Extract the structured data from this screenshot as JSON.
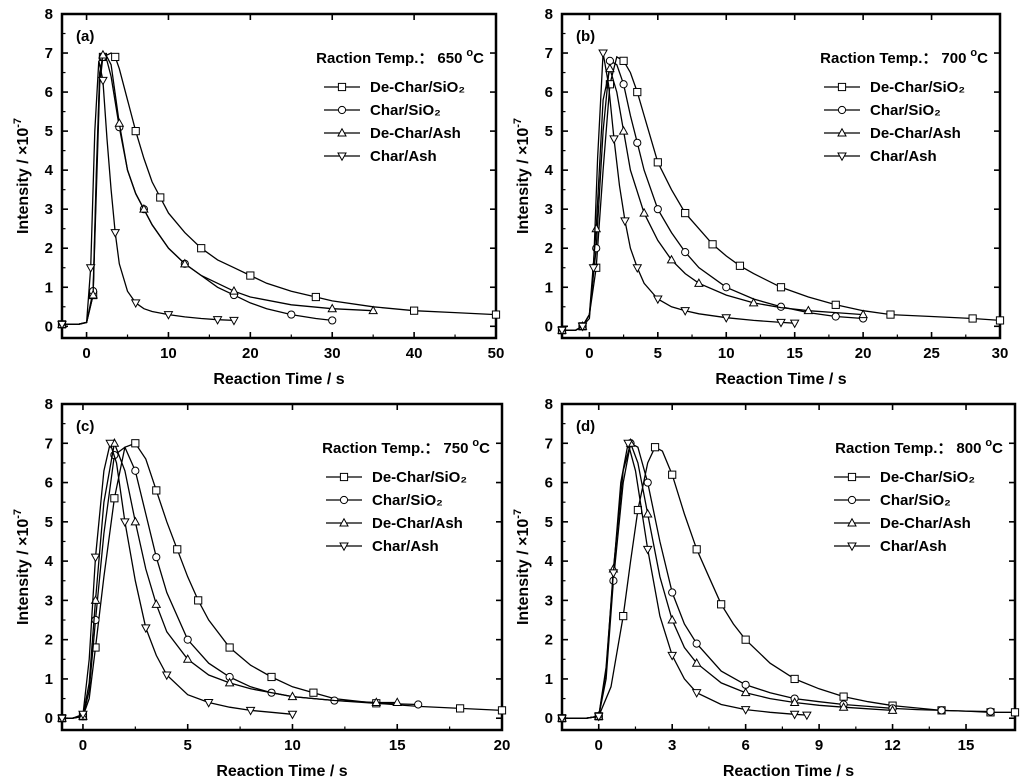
{
  "chart_data": [
    {
      "type": "line",
      "panel_label": "(a)",
      "annotation": {
        "prefix": "Raction Temp.：",
        "value": "650",
        "unit_sup": "o",
        "unit": "C"
      },
      "xlabel": "Reaction Time / s",
      "ylabel": {
        "prefix": "Intensity / ×10",
        "sup": "-7"
      },
      "xlim": [
        -3,
        50
      ],
      "ylim": [
        -0.3,
        8
      ],
      "xticks": [
        0,
        10,
        20,
        30,
        40,
        50
      ],
      "yticks": [
        0,
        1,
        2,
        3,
        4,
        5,
        6,
        7,
        8
      ],
      "legend_position": "top-right",
      "series": [
        {
          "name": "De-Char/SiO₂",
          "marker": "square",
          "x": [
            -3,
            -1,
            0,
            0.8,
            1.2,
            1.6,
            2,
            2.5,
            3,
            3.5,
            4,
            5,
            6,
            7,
            8,
            9,
            10,
            12,
            14,
            16,
            18,
            20,
            22,
            25,
            28,
            30,
            35,
            40,
            45,
            50
          ],
          "y": [
            0.05,
            0.05,
            0.1,
            0.8,
            3.5,
            6.2,
            6.9,
            6.95,
            7.0,
            6.9,
            6.6,
            5.8,
            5.0,
            4.3,
            3.7,
            3.3,
            2.9,
            2.4,
            2.0,
            1.7,
            1.5,
            1.3,
            1.1,
            0.9,
            0.75,
            0.65,
            0.5,
            0.4,
            0.35,
            0.3
          ]
        },
        {
          "name": "Char/SiO₂",
          "marker": "circle",
          "x": [
            -3,
            -1,
            0,
            0.8,
            1.2,
            1.6,
            2,
            2.5,
            3,
            4,
            5,
            6,
            7,
            8,
            10,
            12,
            14,
            16,
            18,
            20,
            22,
            25,
            28,
            30
          ],
          "y": [
            0.05,
            0.05,
            0.1,
            0.9,
            4.0,
            6.5,
            6.9,
            6.8,
            6.4,
            5.1,
            4.0,
            3.4,
            3.0,
            2.6,
            2.0,
            1.6,
            1.3,
            1.0,
            0.8,
            0.6,
            0.45,
            0.3,
            0.2,
            0.15
          ]
        },
        {
          "name": "De-Char/Ash",
          "marker": "triangle-up",
          "x": [
            -3,
            -1,
            0,
            0.8,
            1.2,
            1.6,
            2,
            2.5,
            3,
            4,
            5,
            6,
            7,
            8,
            10,
            12,
            14,
            16,
            18,
            20,
            25,
            30,
            35
          ],
          "y": [
            0.05,
            0.05,
            0.1,
            0.8,
            3.8,
            6.4,
            6.95,
            6.9,
            6.7,
            5.2,
            4.0,
            3.4,
            3.0,
            2.6,
            2.0,
            1.6,
            1.3,
            1.1,
            0.9,
            0.75,
            0.55,
            0.45,
            0.4
          ]
        },
        {
          "name": "Char/Ash",
          "marker": "triangle-down",
          "x": [
            -3,
            -1,
            0,
            0.5,
            1,
            1.5,
            2,
            2.5,
            3,
            3.5,
            4,
            5,
            6,
            7,
            8,
            10,
            12,
            14,
            16,
            18
          ],
          "y": [
            0.05,
            0.05,
            0.1,
            1.5,
            5.0,
            6.8,
            6.3,
            4.8,
            3.5,
            2.4,
            1.6,
            0.9,
            0.6,
            0.45,
            0.38,
            0.3,
            0.24,
            0.2,
            0.17,
            0.15
          ]
        }
      ]
    },
    {
      "type": "line",
      "panel_label": "(b)",
      "annotation": {
        "prefix": "Raction Temp.：",
        "value": "700",
        "unit_sup": "o",
        "unit": "C"
      },
      "xlabel": "Reaction Time / s",
      "ylabel": {
        "prefix": "Intensity / ×10",
        "sup": "-7"
      },
      "xlim": [
        -2,
        30
      ],
      "ylim": [
        -0.3,
        8
      ],
      "xticks": [
        0,
        5,
        10,
        15,
        20,
        25,
        30
      ],
      "yticks": [
        0,
        1,
        2,
        3,
        4,
        5,
        6,
        7,
        8
      ],
      "legend_position": "top-right",
      "series": [
        {
          "name": "De-Char/SiO₂",
          "marker": "square",
          "x": [
            -2,
            -1,
            -0.5,
            0,
            0.5,
            1,
            1.5,
            2,
            2.5,
            3,
            3.5,
            4,
            5,
            6,
            7,
            8,
            9,
            10,
            11,
            12,
            14,
            16,
            18,
            20,
            22,
            25,
            28,
            30
          ],
          "y": [
            -0.1,
            -0.1,
            0,
            0.3,
            1.5,
            4.0,
            6.2,
            6.9,
            6.8,
            6.5,
            6.0,
            5.4,
            4.2,
            3.5,
            2.9,
            2.5,
            2.1,
            1.8,
            1.55,
            1.35,
            1.0,
            0.75,
            0.55,
            0.4,
            0.3,
            0.25,
            0.2,
            0.15
          ]
        },
        {
          "name": "Char/SiO₂",
          "marker": "circle",
          "x": [
            -2,
            -1,
            -0.5,
            0,
            0.5,
            1,
            1.5,
            2,
            2.5,
            3,
            3.5,
            4,
            5,
            6,
            7,
            8,
            10,
            12,
            14,
            16,
            18,
            20
          ],
          "y": [
            -0.1,
            -0.1,
            0,
            0.3,
            2.0,
            5.0,
            6.8,
            6.7,
            6.2,
            5.4,
            4.7,
            4.0,
            3.0,
            2.4,
            1.9,
            1.5,
            1.0,
            0.7,
            0.5,
            0.35,
            0.25,
            0.2
          ]
        },
        {
          "name": "De-Char/Ash",
          "marker": "triangle-up",
          "x": [
            -2,
            -1,
            -0.5,
            0,
            0.5,
            1,
            1.5,
            2,
            2.5,
            3,
            4,
            5,
            6,
            7,
            8,
            10,
            12,
            14,
            16,
            18,
            20
          ],
          "y": [
            -0.1,
            -0.1,
            0,
            0.3,
            2.5,
            5.8,
            6.6,
            6.0,
            5.0,
            4.0,
            2.9,
            2.2,
            1.7,
            1.35,
            1.1,
            0.8,
            0.6,
            0.48,
            0.4,
            0.35,
            0.3
          ]
        },
        {
          "name": "Char/Ash",
          "marker": "triangle-down",
          "x": [
            -2,
            -1,
            -0.5,
            0,
            0.3,
            0.6,
            1,
            1.4,
            1.8,
            2.2,
            2.6,
            3,
            3.5,
            4,
            5,
            6,
            7,
            8,
            10,
            12,
            14,
            15
          ],
          "y": [
            -0.1,
            -0.1,
            0,
            0.2,
            1.5,
            4.3,
            7.0,
            6.2,
            4.8,
            3.6,
            2.7,
            2.0,
            1.5,
            1.1,
            0.7,
            0.5,
            0.4,
            0.32,
            0.22,
            0.15,
            0.1,
            0.08
          ]
        }
      ]
    },
    {
      "type": "line",
      "panel_label": "(c)",
      "annotation": {
        "prefix": "Raction Temp.：",
        "value": "750",
        "unit_sup": "o",
        "unit": "C"
      },
      "xlabel": "Reaction Time / s",
      "ylabel": {
        "prefix": "Intensity / ×10",
        "sup": "-7"
      },
      "xlim": [
        -1,
        20
      ],
      "ylim": [
        -0.3,
        8
      ],
      "xticks": [
        0,
        5,
        10,
        15,
        20
      ],
      "yticks": [
        0,
        1,
        2,
        3,
        4,
        5,
        6,
        7,
        8
      ],
      "legend_position": "top-right",
      "series": [
        {
          "name": "De-Char/SiO₂",
          "marker": "square",
          "x": [
            -1,
            -0.5,
            0,
            0.3,
            0.6,
            1,
            1.5,
            2,
            2.5,
            3,
            3.5,
            4,
            4.5,
            5,
            5.5,
            6,
            7,
            8,
            9,
            10,
            11,
            12,
            14,
            16,
            18,
            20
          ],
          "y": [
            0,
            0,
            0.05,
            0.5,
            1.8,
            3.6,
            5.6,
            6.9,
            7.0,
            6.6,
            5.8,
            5.0,
            4.3,
            3.6,
            3.0,
            2.5,
            1.8,
            1.35,
            1.05,
            0.8,
            0.65,
            0.5,
            0.38,
            0.3,
            0.25,
            0.2
          ]
        },
        {
          "name": "Char/SiO₂",
          "marker": "circle",
          "x": [
            -1,
            -0.5,
            0,
            0.3,
            0.6,
            1,
            1.5,
            2,
            2.5,
            3,
            3.5,
            4,
            5,
            6,
            7,
            8,
            9,
            10,
            12,
            14,
            16
          ],
          "y": [
            0,
            0,
            0.05,
            0.7,
            2.5,
            4.7,
            6.7,
            6.9,
            6.3,
            5.2,
            4.1,
            3.2,
            2.0,
            1.4,
            1.05,
            0.8,
            0.65,
            0.55,
            0.45,
            0.38,
            0.35
          ]
        },
        {
          "name": "De-Char/Ash",
          "marker": "triangle-up",
          "x": [
            -1,
            -0.5,
            0,
            0.3,
            0.6,
            1,
            1.5,
            2,
            2.5,
            3,
            3.5,
            4,
            5,
            6,
            7,
            8,
            10,
            12,
            14,
            15
          ],
          "y": [
            0,
            0,
            0.05,
            0.9,
            3.0,
            5.5,
            7.0,
            6.3,
            5.0,
            3.8,
            2.9,
            2.2,
            1.5,
            1.1,
            0.9,
            0.75,
            0.55,
            0.45,
            0.4,
            0.4
          ]
        },
        {
          "name": "Char/Ash",
          "marker": "triangle-down",
          "x": [
            -1,
            -0.5,
            0,
            0.3,
            0.6,
            1,
            1.3,
            1.6,
            2,
            2.5,
            3,
            3.5,
            4,
            5,
            6,
            7,
            8,
            9,
            10
          ],
          "y": [
            0,
            0,
            0.1,
            1.5,
            4.1,
            6.3,
            7.0,
            6.5,
            5.0,
            3.5,
            2.3,
            1.6,
            1.1,
            0.6,
            0.4,
            0.28,
            0.2,
            0.15,
            0.1
          ]
        }
      ]
    },
    {
      "type": "line",
      "panel_label": "(d)",
      "annotation": {
        "prefix": "Raction Temp.：",
        "value": "800",
        "unit_sup": "o",
        "unit": "C"
      },
      "xlabel": "Reaction Time / s",
      "ylabel": {
        "prefix": "Intensity / ×10",
        "sup": "-7"
      },
      "xlim": [
        -1.5,
        17
      ],
      "ylim": [
        -0.3,
        8
      ],
      "xticks": [
        0,
        3,
        6,
        9,
        12,
        15
      ],
      "yticks": [
        0,
        1,
        2,
        3,
        4,
        5,
        6,
        7,
        8
      ],
      "legend_position": "top-right",
      "series": [
        {
          "name": "De-Char/SiO₂",
          "marker": "square",
          "x": [
            -1.5,
            -0.5,
            0,
            0.5,
            1,
            1.3,
            1.6,
            2,
            2.3,
            2.6,
            3,
            3.5,
            4,
            4.5,
            5,
            5.5,
            6,
            7,
            8,
            9,
            10,
            11,
            12,
            13,
            14,
            15,
            16,
            17
          ],
          "y": [
            0,
            0,
            0.05,
            0.8,
            2.6,
            4.0,
            5.3,
            6.5,
            6.9,
            6.8,
            6.2,
            5.2,
            4.3,
            3.6,
            2.9,
            2.4,
            2.0,
            1.4,
            1.0,
            0.75,
            0.55,
            0.42,
            0.32,
            0.26,
            0.2,
            0.18,
            0.15,
            0.15
          ]
        },
        {
          "name": "Char/SiO₂",
          "marker": "circle",
          "x": [
            -1.5,
            -0.5,
            0,
            0.3,
            0.6,
            1,
            1.3,
            1.6,
            2,
            2.5,
            3,
            3.5,
            4,
            5,
            6,
            7,
            8,
            9,
            10,
            11,
            12,
            13,
            14,
            15,
            16
          ],
          "y": [
            0,
            0,
            0.05,
            1.0,
            3.5,
            6.0,
            7.0,
            6.9,
            6.0,
            4.5,
            3.2,
            2.4,
            1.9,
            1.2,
            0.85,
            0.65,
            0.5,
            0.42,
            0.35,
            0.3,
            0.25,
            0.22,
            0.2,
            0.18,
            0.17
          ]
        },
        {
          "name": "De-Char/Ash",
          "marker": "triangle-up",
          "x": [
            -1.5,
            -0.5,
            0,
            0.3,
            0.6,
            1,
            1.3,
            1.6,
            2,
            2.5,
            3,
            3.5,
            4,
            5,
            6,
            7,
            8,
            9,
            10,
            11,
            12
          ],
          "y": [
            0,
            0,
            0.05,
            1.2,
            3.8,
            6.3,
            7.0,
            6.5,
            5.2,
            3.6,
            2.5,
            1.8,
            1.4,
            0.9,
            0.65,
            0.5,
            0.4,
            0.33,
            0.28,
            0.24,
            0.2
          ]
        },
        {
          "name": "Char/Ash",
          "marker": "triangle-down",
          "x": [
            -1.5,
            -0.5,
            0,
            0.3,
            0.6,
            0.9,
            1.2,
            1.5,
            2,
            2.5,
            3,
            3.5,
            4,
            5,
            6,
            7,
            8,
            8.5
          ],
          "y": [
            0,
            0,
            0.05,
            1.3,
            3.7,
            6.0,
            7.0,
            6.3,
            4.3,
            2.6,
            1.6,
            1.0,
            0.65,
            0.35,
            0.22,
            0.15,
            0.1,
            0.08
          ]
        }
      ]
    }
  ]
}
